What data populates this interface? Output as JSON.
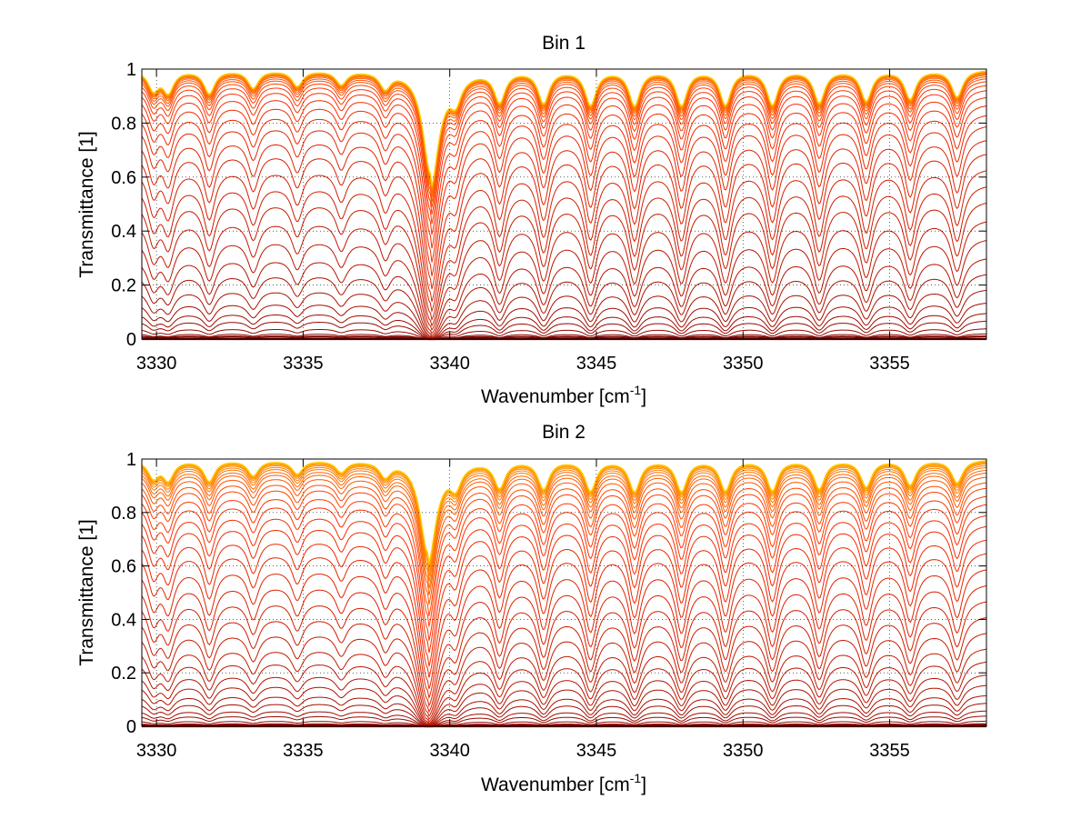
{
  "chart_data": [
    {
      "type": "line",
      "title": "Bin 1",
      "xlabel": "Wavenumber [cm",
      "xlabel_sup": "-1",
      "xlabel_end": "]",
      "ylabel": "Transmittance [1]",
      "xlim": [
        3329.5,
        3358.3
      ],
      "ylim": [
        0,
        1
      ],
      "xticks": [
        3330,
        3335,
        3340,
        3345,
        3350,
        3355
      ],
      "yticks": [
        0,
        0.2,
        0.4,
        0.6,
        0.8,
        1
      ],
      "xtick_labels": [
        "3330",
        "3335",
        "3340",
        "3345",
        "3350",
        "3355"
      ],
      "ytick_labels": [
        "0",
        "0.2",
        "0.4",
        "0.6",
        "0.8",
        "1"
      ],
      "grid": "dotted",
      "series_count": 40,
      "baseline_levels": [
        0.0,
        0.01,
        0.02,
        0.04,
        0.07,
        0.1,
        0.14,
        0.19,
        0.25,
        0.31,
        0.38,
        0.45,
        0.52,
        0.58,
        0.64,
        0.7,
        0.75,
        0.8,
        0.84,
        0.875,
        0.905,
        0.93,
        0.948,
        0.962,
        0.972,
        0.979,
        0.985,
        0.989,
        0.992,
        0.994,
        0.996,
        0.997,
        0.998,
        0.998,
        0.999,
        0.999,
        0.999,
        1.0,
        1.0,
        1.0
      ],
      "absorption_lines": [
        {
          "x": 3329.9,
          "depth": 0.5
        },
        {
          "x": 3330.4,
          "depth": 0.55
        },
        {
          "x": 3331.8,
          "depth": 0.6
        },
        {
          "x": 3333.3,
          "depth": 0.45
        },
        {
          "x": 3334.8,
          "depth": 0.4
        },
        {
          "x": 3336.3,
          "depth": 0.35
        },
        {
          "x": 3337.8,
          "depth": 0.42
        },
        {
          "x": 3339.35,
          "depth": 3.2
        },
        {
          "x": 3340.2,
          "depth": 0.6
        },
        {
          "x": 3341.7,
          "depth": 0.8
        },
        {
          "x": 3343.2,
          "depth": 0.85
        },
        {
          "x": 3344.8,
          "depth": 0.9
        },
        {
          "x": 3346.3,
          "depth": 0.92
        },
        {
          "x": 3347.9,
          "depth": 0.92
        },
        {
          "x": 3349.4,
          "depth": 0.9
        },
        {
          "x": 3351.0,
          "depth": 0.9
        },
        {
          "x": 3352.6,
          "depth": 0.85
        },
        {
          "x": 3354.2,
          "depth": 0.8
        },
        {
          "x": 3355.7,
          "depth": 0.75
        },
        {
          "x": 3357.3,
          "depth": 0.7
        }
      ]
    },
    {
      "type": "line",
      "title": "Bin 2",
      "xlabel": "Wavenumber [cm",
      "xlabel_sup": "-1",
      "xlabel_end": "]",
      "ylabel": "Transmittance [1]",
      "xlim": [
        3329.5,
        3358.3
      ],
      "ylim": [
        0,
        1
      ],
      "xticks": [
        3330,
        3335,
        3340,
        3345,
        3350,
        3355
      ],
      "yticks": [
        0,
        0.2,
        0.4,
        0.6,
        0.8,
        1
      ],
      "xtick_labels": [
        "3330",
        "3335",
        "3340",
        "3345",
        "3350",
        "3355"
      ],
      "ytick_labels": [
        "0",
        "0.2",
        "0.4",
        "0.6",
        "0.8",
        "1"
      ],
      "grid": "dotted",
      "series_count": 40,
      "baseline_levels": [
        0.0,
        0.005,
        0.01,
        0.02,
        0.04,
        0.06,
        0.09,
        0.12,
        0.16,
        0.2,
        0.25,
        0.3,
        0.36,
        0.42,
        0.48,
        0.54,
        0.6,
        0.66,
        0.71,
        0.76,
        0.8,
        0.84,
        0.87,
        0.9,
        0.92,
        0.94,
        0.955,
        0.965,
        0.975,
        0.982,
        0.988,
        0.992,
        0.995,
        0.997,
        0.998,
        0.999,
        0.999,
        1.0,
        1.0,
        1.0
      ],
      "absorption_lines": [
        {
          "x": 3329.9,
          "depth": 0.45
        },
        {
          "x": 3330.4,
          "depth": 0.5
        },
        {
          "x": 3331.8,
          "depth": 0.55
        },
        {
          "x": 3333.3,
          "depth": 0.4
        },
        {
          "x": 3334.8,
          "depth": 0.35
        },
        {
          "x": 3336.3,
          "depth": 0.3
        },
        {
          "x": 3337.8,
          "depth": 0.38
        },
        {
          "x": 3339.25,
          "depth": 2.8
        },
        {
          "x": 3340.2,
          "depth": 0.55
        },
        {
          "x": 3341.7,
          "depth": 0.7
        },
        {
          "x": 3343.2,
          "depth": 0.75
        },
        {
          "x": 3344.8,
          "depth": 0.8
        },
        {
          "x": 3346.3,
          "depth": 0.82
        },
        {
          "x": 3347.9,
          "depth": 0.82
        },
        {
          "x": 3349.4,
          "depth": 0.8
        },
        {
          "x": 3351.0,
          "depth": 0.8
        },
        {
          "x": 3352.6,
          "depth": 0.75
        },
        {
          "x": 3354.2,
          "depth": 0.7
        },
        {
          "x": 3355.7,
          "depth": 0.65
        },
        {
          "x": 3357.3,
          "depth": 0.6
        }
      ]
    }
  ],
  "colors": {
    "axis": "#000000",
    "grid": "#000000",
    "series_low": "#800000",
    "series_mid": "#ff3000",
    "series_high": "#ffd000",
    "series_top": "#0050ff"
  }
}
